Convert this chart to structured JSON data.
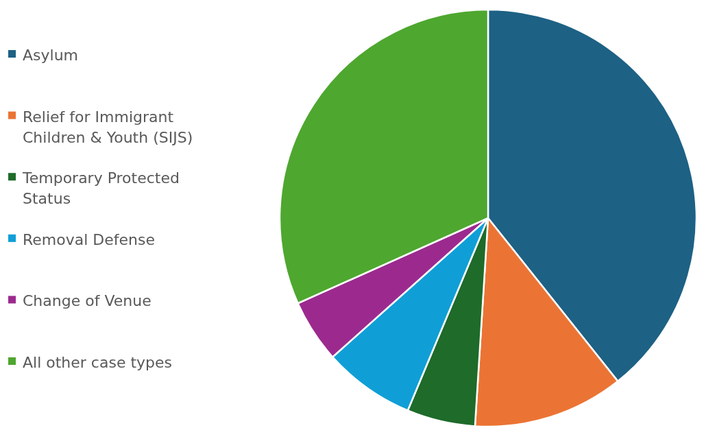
{
  "chart_data": {
    "type": "pie",
    "categories": [
      "Asylum",
      "Relief for Immigrant Children & Youth (SIJS)",
      "Temporary Protected Status",
      "Removal Defense",
      "Change of Venue",
      "All other case types"
    ],
    "values": [
      39.3,
      11.7,
      5.3,
      7.1,
      4.9,
      31.7
    ],
    "colors": [
      "#1d6184",
      "#eb7434",
      "#1e6b2a",
      "#0f9fd6",
      "#9c2a8e",
      "#4ea72f"
    ],
    "legend": "left"
  }
}
